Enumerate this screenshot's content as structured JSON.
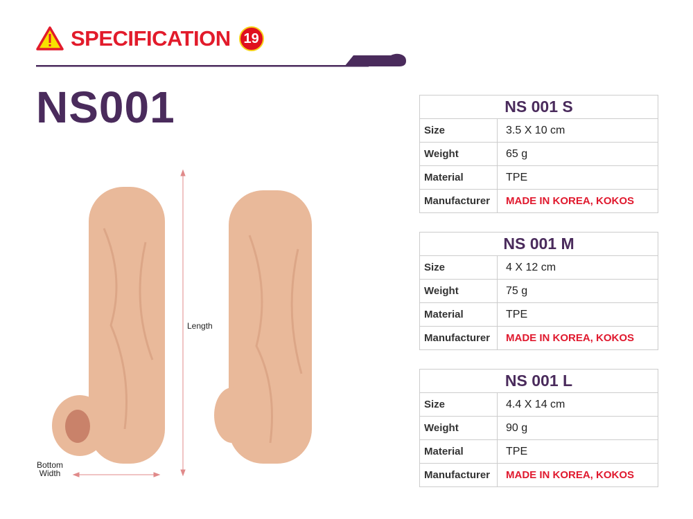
{
  "header": {
    "title": "SPECIFICATION",
    "age_badge": "19",
    "warning_icon": "warning-triangle-icon"
  },
  "model": "NS001",
  "annotations": {
    "length": "Length",
    "bottom_width_1": "Bottom",
    "bottom_width_2": "Width"
  },
  "colors": {
    "accent_red": "#e21b2b",
    "brand_purple": "#4a2b5c"
  },
  "tables": [
    {
      "title": "NS 001 S",
      "rows": [
        {
          "label": "Size",
          "value": "3.5 X 10 cm"
        },
        {
          "label": "Weight",
          "value": "65 g"
        },
        {
          "label": "Material",
          "value": "TPE"
        },
        {
          "label": "Manufacturer",
          "value": "MADE IN KOREA, KOKOS"
        }
      ]
    },
    {
      "title": "NS 001 M",
      "rows": [
        {
          "label": "Size",
          "value": "4 X 12 cm"
        },
        {
          "label": "Weight",
          "value": "75 g"
        },
        {
          "label": "Material",
          "value": "TPE"
        },
        {
          "label": "Manufacturer",
          "value": "MADE IN KOREA, KOKOS"
        }
      ]
    },
    {
      "title": "NS 001 L",
      "rows": [
        {
          "label": "Size",
          "value": "4.4 X 14 cm"
        },
        {
          "label": "Weight",
          "value": "90 g"
        },
        {
          "label": "Material",
          "value": "TPE"
        },
        {
          "label": "Manufacturer",
          "value": "MADE IN KOREA, KOKOS"
        }
      ]
    }
  ]
}
